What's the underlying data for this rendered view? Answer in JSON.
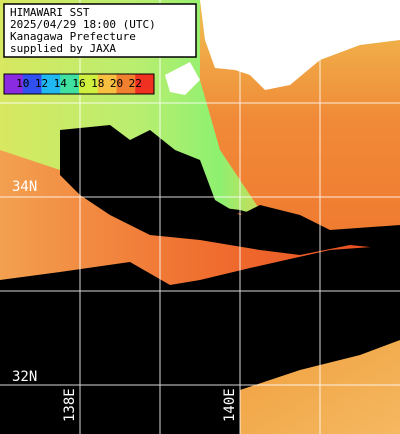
{
  "header": {
    "lines": [
      "HIMAWARI SST",
      "2025/04/29 18:00 (UTC)",
      "Kanagawa Prefecture",
      "supplied by JAXA"
    ]
  },
  "legend": {
    "labels": [
      10,
      12,
      14,
      16,
      18,
      20,
      22
    ]
  },
  "grid_labels": {
    "lat": [
      "34N",
      "32N"
    ],
    "lon": [
      "138E",
      "140E"
    ]
  }
}
